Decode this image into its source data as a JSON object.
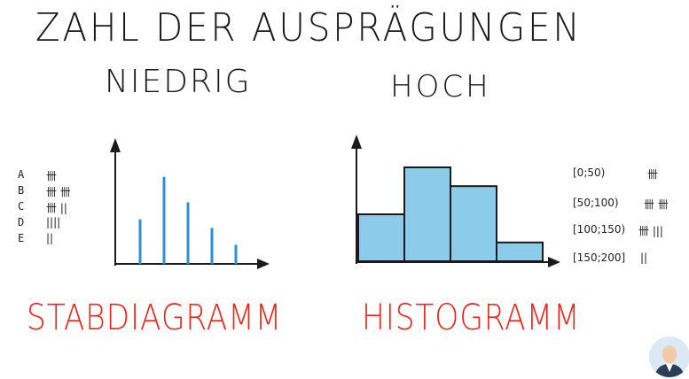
{
  "title": "ZAHL DER AUSPRÄGUNGEN",
  "labels": {
    "low": "NIEDRIG",
    "high": "HOCH"
  },
  "names": {
    "left": "STABDIAGRAMM",
    "right": "HISTOGRAMM"
  },
  "colors": {
    "accent": "#e8281c",
    "bar": "#8ccbe9",
    "stick": "#2f8fd6",
    "ink": "#1a1a1a"
  },
  "tally_list": [
    {
      "category": "A",
      "tally": "卌"
    },
    {
      "category": "B",
      "tally": "卌 卌"
    },
    {
      "category": "C",
      "tally": "卌 ||"
    },
    {
      "category": "D",
      "tally": "||||"
    },
    {
      "category": "E",
      "tally": "||"
    }
  ],
  "bin_list": [
    {
      "interval": "[0;50)",
      "tally": "卌"
    },
    {
      "interval": "[50;100)",
      "tally": "卌 卌"
    },
    {
      "interval": "[100;150)",
      "tally": "卌 |||"
    },
    {
      "interval": "[150;200]",
      "tally": "||"
    }
  ],
  "chart_data": [
    {
      "type": "bar",
      "categories": [
        "A",
        "B",
        "C",
        "D",
        "E"
      ],
      "values": [
        5,
        10,
        7,
        4,
        2
      ]
    },
    {
      "type": "bar",
      "categories": [
        "[0;50)",
        "[50;100)",
        "[100;150)",
        "[150;200]"
      ],
      "values": [
        5,
        10,
        8,
        2
      ]
    }
  ]
}
